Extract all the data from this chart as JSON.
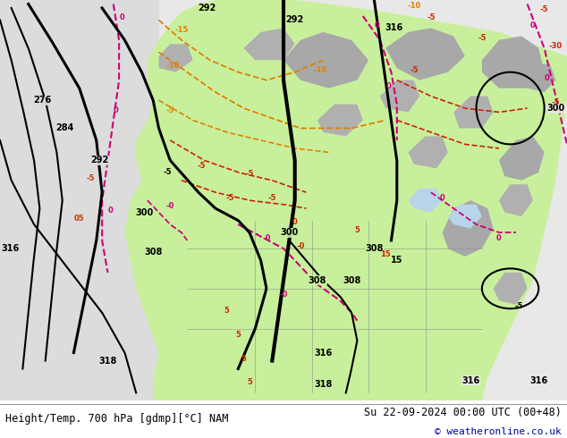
{
  "title_left": "Height/Temp. 700 hPa [gdmp][°C] NAM",
  "title_right": "Su 22-09-2024 00:00 UTC (00+48)",
  "copyright": "© weatheronline.co.uk",
  "bg_color": "#ffffff",
  "land_green": "#c8f0a0",
  "land_gray": "#b0b0b0",
  "ocean_color": "#e0e8f0",
  "left_ocean": "#d8d8d8",
  "figsize": [
    6.34,
    4.9
  ],
  "dpi": 100,
  "bottom_bar_height": 0.085
}
